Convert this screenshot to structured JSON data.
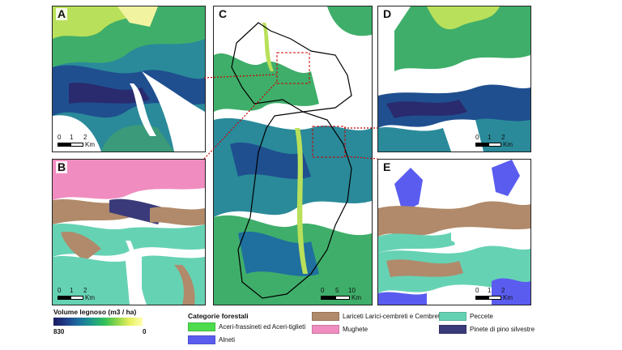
{
  "panels": {
    "a": {
      "label": "A",
      "scale": {
        "ticks": [
          "0",
          "1",
          "2"
        ],
        "unit": "Km"
      }
    },
    "b": {
      "label": "B",
      "scale": {
        "ticks": [
          "0",
          "1",
          "2"
        ],
        "unit": "Km"
      }
    },
    "c": {
      "label": "C",
      "scale": {
        "ticks": [
          "0",
          "5",
          "10"
        ],
        "unit": "Km"
      }
    },
    "d": {
      "label": "D",
      "scale": {
        "ticks": [
          "0",
          "1",
          "2"
        ],
        "unit": "Km"
      }
    },
    "e": {
      "label": "E",
      "scale": {
        "ticks": [
          "0",
          "1",
          "2"
        ],
        "unit": "Km"
      }
    }
  },
  "volume_legend": {
    "title": "Volume legnoso (m3 / ha)",
    "min_label": "830",
    "max_label": "0"
  },
  "category_legend": {
    "title": "Categorie forestali",
    "items": [
      {
        "label": "Aceri-frassineti ed Aceri-tiglieti",
        "color": "#4ddc4d"
      },
      {
        "label": "Alneti",
        "color": "#5a5cf0"
      },
      {
        "label": "Lariceti Larici-cembreti e Cembrete",
        "color": "#b08a6a"
      },
      {
        "label": "Mughete",
        "color": "#f08cc0"
      },
      {
        "label": "Peccete",
        "color": "#66d2b4"
      },
      {
        "label": "Pinete di pino silvestre",
        "color": "#3a3a7a"
      }
    ]
  },
  "colors": {
    "volume_low": "#ffffb0",
    "volume_mid": "#2fbf5a",
    "volume_high": "#1a1a5e",
    "zoom_box": "#cc0000",
    "boundary": "#000000"
  }
}
